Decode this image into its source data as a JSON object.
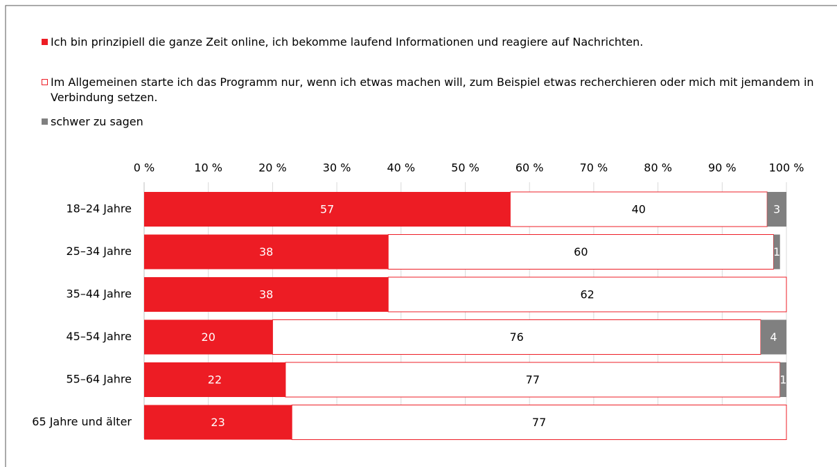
{
  "chart_data": {
    "type": "stacked-barh",
    "categories": [
      "18–24 Jahre",
      "25–34 Jahre",
      "35–44 Jahre",
      "45–54 Jahre",
      "55–64 Jahre",
      "65 Jahre und älter"
    ],
    "series": [
      {
        "name": "Ich bin prinzipiell die ganze Zeit online, ich bekomme laufend Informationen und reagiere auf Nachrichten.",
        "color": "#ed1c24",
        "values": [
          57,
          38,
          38,
          20,
          22,
          23
        ]
      },
      {
        "name": "Im Allgemeinen starte ich das Programm nur, wenn ich etwas machen will, zum Beispiel etwas recherchieren oder mich mit jemandem in Verbindung setzen.",
        "color": "#ffffff",
        "values": [
          40,
          60,
          62,
          76,
          77,
          77
        ]
      },
      {
        "name": "schwer zu sagen",
        "color": "#808080",
        "values": [
          3,
          1,
          null,
          4,
          1,
          null
        ]
      }
    ],
    "xlim": [
      0,
      100
    ],
    "xticks": [
      {
        "value": 0,
        "label": "0 %"
      },
      {
        "value": 10,
        "label": "10 %"
      },
      {
        "value": 20,
        "label": "20 %"
      },
      {
        "value": 30,
        "label": "30 %"
      },
      {
        "value": 40,
        "label": "40 %"
      },
      {
        "value": 50,
        "label": "50 %"
      },
      {
        "value": 60,
        "label": "60 %"
      },
      {
        "value": 70,
        "label": "70 %"
      },
      {
        "value": 80,
        "label": "80 %"
      },
      {
        "value": 90,
        "label": "90 %"
      },
      {
        "value": 100,
        "label": "100 %"
      }
    ],
    "grid": true
  }
}
